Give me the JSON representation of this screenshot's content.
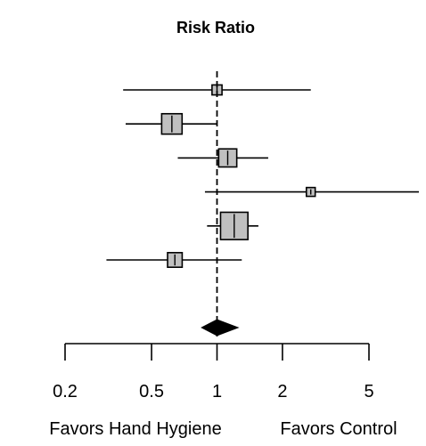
{
  "chart_data": {
    "type": "forest",
    "title": "Risk Ratio",
    "x_scale": "log",
    "xlim": [
      0.2,
      8.5
    ],
    "x_ticks": [
      0.2,
      0.5,
      1,
      2,
      5
    ],
    "x_tick_labels": [
      "0.2",
      "0.5",
      "1",
      "2",
      "5"
    ],
    "reference_line": 1,
    "studies": [
      {
        "rr": 1.0,
        "lower": 0.37,
        "upper": 2.7,
        "weight": 0.2
      },
      {
        "rr": 0.62,
        "lower": 0.38,
        "upper": 1.0,
        "weight": 0.65
      },
      {
        "rr": 1.12,
        "lower": 0.66,
        "upper": 1.72,
        "weight": 0.55
      },
      {
        "rr": 2.7,
        "lower": 0.88,
        "upper": 8.5,
        "weight": 0.15
      },
      {
        "rr": 1.2,
        "lower": 0.9,
        "upper": 1.55,
        "weight": 0.95
      },
      {
        "rr": 0.64,
        "lower": 0.31,
        "upper": 1.3,
        "weight": 0.4
      }
    ],
    "pooled": {
      "rr": 1.0,
      "lower": 0.85,
      "upper": 1.25
    },
    "favors_left_label": "Favors Hand Hygiene",
    "favors_right_label": "Favors Control"
  }
}
